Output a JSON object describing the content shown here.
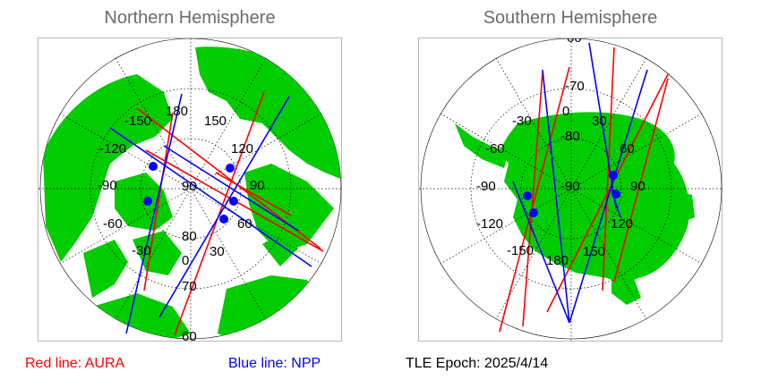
{
  "north": {
    "title": "Northern Hemisphere",
    "lon_labels": [
      "180",
      "150",
      "120",
      "90",
      "60",
      "30",
      "0",
      "-30",
      "-60",
      "-90",
      "-120",
      "-150"
    ],
    "lat_labels": [
      "90",
      "80",
      "70",
      "60"
    ]
  },
  "south": {
    "title": "Southern Hemisphere",
    "lon_labels": [
      "0",
      "30",
      "60",
      "90",
      "120",
      "150",
      "180",
      "-150",
      "-120",
      "-90",
      "-60",
      "-30"
    ],
    "lat_labels": [
      "-90",
      "-80",
      "-70",
      "-60"
    ]
  },
  "legend": {
    "aura": "Red line: AURA",
    "npp": "Blue line: NPP",
    "epoch": "TLE Epoch: 2025/4/14"
  },
  "colors": {
    "land": "#00cc00",
    "aura": "#ff0000",
    "npp": "#0000ff",
    "title": "#6b6b6b",
    "grid": "#000000"
  }
}
